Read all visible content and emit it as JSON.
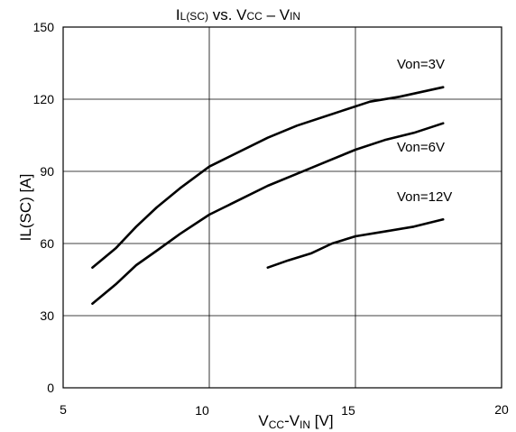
{
  "chart_data": {
    "type": "line",
    "title": {
      "main": "I",
      "sub1": "L(SC)",
      "mid": " vs. V",
      "sub2": "CC",
      "dash": " – V",
      "sub3": "IN"
    },
    "xlabel": {
      "main": "V",
      "sub1": "CC",
      "mid": "-V",
      "sub2": "IN",
      "unit": "  [V]"
    },
    "ylabel": "IL(SC)  [A]",
    "xlim": [
      5,
      20
    ],
    "ylim": [
      0,
      150
    ],
    "xticks": [
      "5",
      "10",
      "15",
      "20"
    ],
    "yticks": [
      "0",
      "30",
      "60",
      "90",
      "120",
      "150"
    ],
    "grid": true,
    "series": [
      {
        "name": "Von=3V",
        "x": [
          6,
          6.8,
          7.5,
          8.2,
          9,
          10,
          10.5,
          12,
          13,
          14.5,
          15.5,
          16.5,
          18
        ],
        "y": [
          50,
          58,
          67,
          75,
          83,
          92,
          95,
          104,
          109,
          115,
          119,
          121,
          125
        ]
      },
      {
        "name": "Von=6V",
        "x": [
          6,
          6.8,
          7.5,
          8.2,
          9,
          10,
          10.5,
          12,
          13,
          14,
          15,
          16,
          17,
          18
        ],
        "y": [
          35,
          43,
          51,
          57,
          64,
          72,
          75,
          84,
          89,
          94,
          99,
          103,
          106,
          110
        ]
      },
      {
        "name": "Von=12V",
        "x": [
          12,
          12.7,
          13.5,
          14.2,
          15,
          16,
          17,
          18
        ],
        "y": [
          50,
          53,
          56,
          60,
          63,
          65,
          67,
          70
        ]
      }
    ]
  }
}
